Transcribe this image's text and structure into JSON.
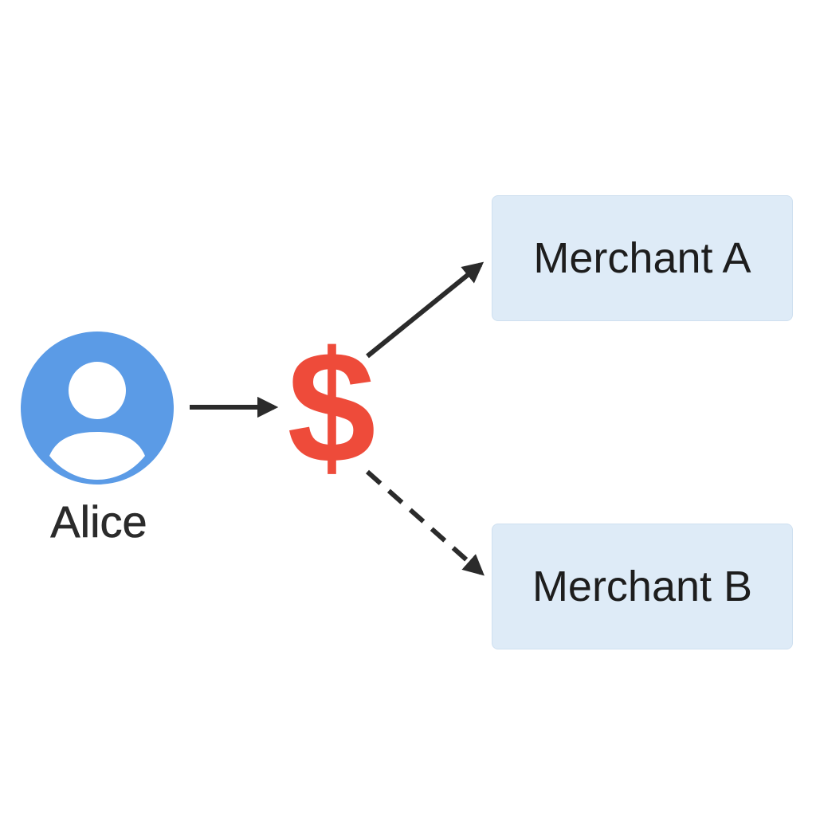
{
  "sender": {
    "label": "Alice",
    "avatar_icon": "user-avatar-icon",
    "avatar_color": "#5b9be6"
  },
  "payment": {
    "symbol": "$",
    "color": "#ee4b3a"
  },
  "recipients": [
    {
      "label": "Merchant A",
      "edge_style": "solid"
    },
    {
      "label": "Merchant B",
      "edge_style": "dashed"
    }
  ],
  "colors": {
    "node_fill": "#deebf7",
    "arrow": "#2b2b2b"
  }
}
